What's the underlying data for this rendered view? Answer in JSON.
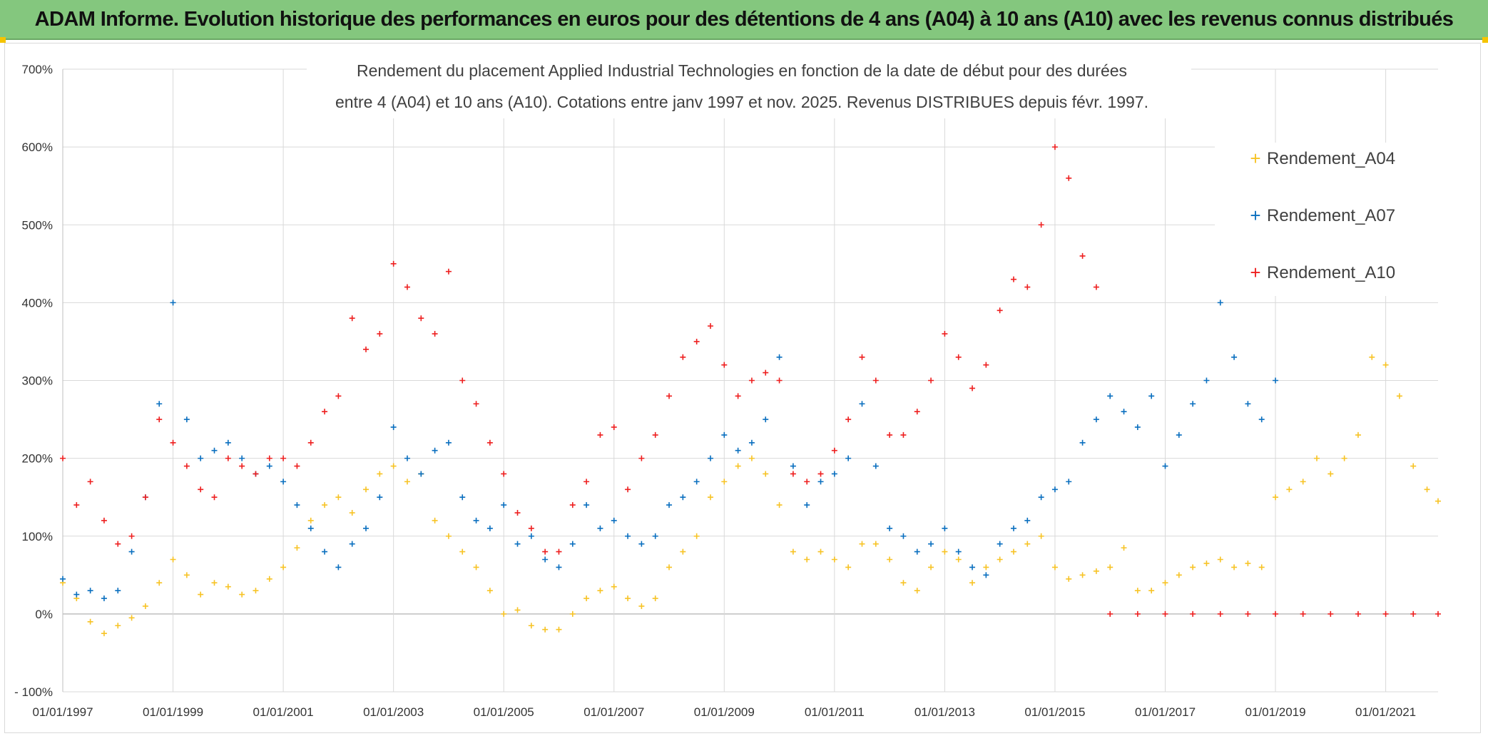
{
  "banner": {
    "title": "ADAM Informe. Evolution historique des performances en euros pour des détentions de 4 ans (A04) à 10 ans (A10) avec les revenus connus distribués"
  },
  "chart_data": {
    "type": "scatter",
    "title_line1": "Rendement du placement Applied Industrial Technologies en fonction de la date de début pour des durées",
    "title_line2": "entre 4 (A04) et 10 ans (A10). Cotations entre janv 1997 et nov. 2025. Revenus DISTRIBUES depuis févr. 1997.",
    "xlabel": "",
    "ylabel": "",
    "xlim": [
      1997.0,
      2021.95
    ],
    "ylim": [
      -100,
      700
    ],
    "y_ticks": [
      -100,
      0,
      100,
      200,
      300,
      400,
      500,
      600,
      700
    ],
    "y_tick_labels": [
      "- 100%",
      "0%",
      "100%",
      "200%",
      "300%",
      "400%",
      "500%",
      "600%",
      "700%"
    ],
    "x_ticks": [
      1997,
      1999,
      2001,
      2003,
      2005,
      2007,
      2009,
      2011,
      2013,
      2015,
      2017,
      2019,
      2021
    ],
    "x_tick_labels": [
      "01/01/1997",
      "01/01/1999",
      "01/01/2001",
      "01/01/2003",
      "01/01/2005",
      "01/01/2007",
      "01/01/2009",
      "01/01/2011",
      "01/01/2013",
      "01/01/2015",
      "01/01/2017",
      "01/01/2019",
      "01/01/2021"
    ],
    "grid": true,
    "legend_position": "right",
    "marker": "+",
    "series": [
      {
        "name": "Rendement_A04",
        "color": "#f7c325",
        "x": [
          1997.0,
          1997.25,
          1997.5,
          1997.75,
          1998.0,
          1998.25,
          1998.5,
          1998.75,
          1999.0,
          1999.25,
          1999.5,
          1999.75,
          2000.0,
          2000.25,
          2000.5,
          2000.75,
          2001.0,
          2001.25,
          2001.5,
          2001.75,
          2002.0,
          2002.25,
          2002.5,
          2002.75,
          2003.0,
          2003.25,
          2003.5,
          2003.75,
          2004.0,
          2004.25,
          2004.5,
          2004.75,
          2005.0,
          2005.25,
          2005.5,
          2005.75,
          2006.0,
          2006.25,
          2006.5,
          2006.75,
          2007.0,
          2007.25,
          2007.5,
          2007.75,
          2008.0,
          2008.25,
          2008.5,
          2008.75,
          2009.0,
          2009.25,
          2009.5,
          2009.75,
          2010.0,
          2010.25,
          2010.5,
          2010.75,
          2011.0,
          2011.25,
          2011.5,
          2011.75,
          2012.0,
          2012.25,
          2012.5,
          2012.75,
          2013.0,
          2013.25,
          2013.5,
          2013.75,
          2014.0,
          2014.25,
          2014.5,
          2014.75,
          2015.0,
          2015.25,
          2015.5,
          2015.75,
          2016.0,
          2016.25,
          2016.5,
          2016.75,
          2017.0,
          2017.25,
          2017.5,
          2017.75,
          2018.0,
          2018.25,
          2018.5,
          2018.75,
          2019.0,
          2019.25,
          2019.5,
          2019.75,
          2020.0,
          2020.25,
          2020.5,
          2020.75,
          2021.0,
          2021.25,
          2021.5,
          2021.75,
          2021.95
        ],
        "values": [
          40,
          20,
          -10,
          -25,
          -15,
          -5,
          10,
          40,
          70,
          50,
          25,
          40,
          35,
          25,
          30,
          45,
          60,
          85,
          120,
          140,
          150,
          130,
          160,
          180,
          190,
          170,
          180,
          120,
          100,
          80,
          60,
          30,
          0,
          5,
          -15,
          -20,
          -20,
          0,
          20,
          30,
          35,
          20,
          10,
          20,
          60,
          80,
          100,
          150,
          170,
          190,
          200,
          180,
          140,
          80,
          70,
          80,
          70,
          60,
          90,
          90,
          70,
          40,
          30,
          60,
          80,
          70,
          40,
          60,
          70,
          80,
          90,
          100,
          60,
          45,
          50,
          55,
          60,
          85,
          30,
          30,
          40,
          50,
          60,
          65,
          70,
          60,
          65,
          60,
          150,
          160,
          170,
          200,
          180,
          200,
          230,
          330,
          320,
          280,
          190,
          160,
          145
        ]
      },
      {
        "name": "Rendement_A07",
        "color": "#0a6fbf",
        "x": [
          1997.0,
          1997.25,
          1997.5,
          1997.75,
          1998.0,
          1998.25,
          1998.5,
          1998.75,
          1999.0,
          1999.25,
          1999.5,
          1999.75,
          2000.0,
          2000.25,
          2000.5,
          2000.75,
          2001.0,
          2001.25,
          2001.5,
          2001.75,
          2002.0,
          2002.25,
          2002.5,
          2002.75,
          2003.0,
          2003.25,
          2003.5,
          2003.75,
          2004.0,
          2004.25,
          2004.5,
          2004.75,
          2005.0,
          2005.25,
          2005.5,
          2005.75,
          2006.0,
          2006.25,
          2006.5,
          2006.75,
          2007.0,
          2007.25,
          2007.5,
          2007.75,
          2008.0,
          2008.25,
          2008.5,
          2008.75,
          2009.0,
          2009.25,
          2009.5,
          2009.75,
          2010.0,
          2010.25,
          2010.5,
          2010.75,
          2011.0,
          2011.25,
          2011.5,
          2011.75,
          2012.0,
          2012.25,
          2012.5,
          2012.75,
          2013.0,
          2013.25,
          2013.5,
          2013.75,
          2014.0,
          2014.25,
          2014.5,
          2014.75,
          2015.0,
          2015.25,
          2015.5,
          2015.75,
          2016.0,
          2016.25,
          2016.5,
          2016.75,
          2017.0,
          2017.25,
          2017.5,
          2017.75,
          2018.0,
          2018.25,
          2018.5,
          2018.75,
          2019.0
        ],
        "values": [
          45,
          25,
          30,
          20,
          30,
          80,
          150,
          270,
          400,
          250,
          200,
          210,
          220,
          200,
          180,
          190,
          170,
          140,
          110,
          80,
          60,
          90,
          110,
          150,
          240,
          200,
          180,
          210,
          220,
          150,
          120,
          110,
          140,
          90,
          100,
          70,
          60,
          90,
          140,
          110,
          120,
          100,
          90,
          100,
          140,
          150,
          170,
          200,
          230,
          210,
          220,
          250,
          330,
          190,
          140,
          170,
          180,
          200,
          270,
          190,
          110,
          100,
          80,
          90,
          110,
          80,
          60,
          50,
          90,
          110,
          120,
          150,
          160,
          170,
          220,
          250,
          280,
          260,
          240,
          280,
          190,
          230,
          270,
          300,
          400,
          330,
          270,
          250,
          300
        ]
      },
      {
        "name": "Rendement_A10",
        "color": "#ee1f1f",
        "x": [
          1997.0,
          1997.25,
          1997.5,
          1997.75,
          1998.0,
          1998.25,
          1998.5,
          1998.75,
          1999.0,
          1999.25,
          1999.5,
          1999.75,
          2000.0,
          2000.25,
          2000.5,
          2000.75,
          2001.0,
          2001.25,
          2001.5,
          2001.75,
          2002.0,
          2002.25,
          2002.5,
          2002.75,
          2003.0,
          2003.25,
          2003.5,
          2003.75,
          2004.0,
          2004.25,
          2004.5,
          2004.75,
          2005.0,
          2005.25,
          2005.5,
          2005.75,
          2006.0,
          2006.25,
          2006.5,
          2006.75,
          2007.0,
          2007.25,
          2007.5,
          2007.75,
          2008.0,
          2008.25,
          2008.5,
          2008.75,
          2009.0,
          2009.25,
          2009.5,
          2009.75,
          2010.0,
          2010.25,
          2010.5,
          2010.75,
          2011.0,
          2011.25,
          2011.5,
          2011.75,
          2012.0,
          2012.25,
          2012.5,
          2012.75,
          2013.0,
          2013.25,
          2013.5,
          2013.75,
          2014.0,
          2014.25,
          2014.5,
          2014.75,
          2015.0,
          2015.25,
          2015.5,
          2015.75,
          2016.0,
          2016.5,
          2017.0,
          2017.5,
          2018.0,
          2018.5,
          2019.0,
          2019.5,
          2020.0,
          2020.5,
          2021.0,
          2021.5,
          2021.95
        ],
        "values": [
          200,
          140,
          170,
          120,
          90,
          100,
          150,
          250,
          220,
          190,
          160,
          150,
          200,
          190,
          180,
          200,
          200,
          190,
          220,
          260,
          280,
          380,
          340,
          360,
          450,
          420,
          380,
          360,
          440,
          300,
          270,
          220,
          180,
          130,
          110,
          80,
          80,
          140,
          170,
          230,
          240,
          160,
          200,
          230,
          280,
          330,
          350,
          370,
          320,
          280,
          300,
          310,
          300,
          180,
          170,
          180,
          210,
          250,
          330,
          300,
          230,
          230,
          260,
          300,
          360,
          330,
          290,
          320,
          390,
          430,
          420,
          500,
          600,
          560,
          460,
          420,
          0,
          0,
          0,
          0,
          0,
          0,
          0,
          0,
          0,
          0,
          0,
          0,
          0
        ]
      }
    ]
  }
}
